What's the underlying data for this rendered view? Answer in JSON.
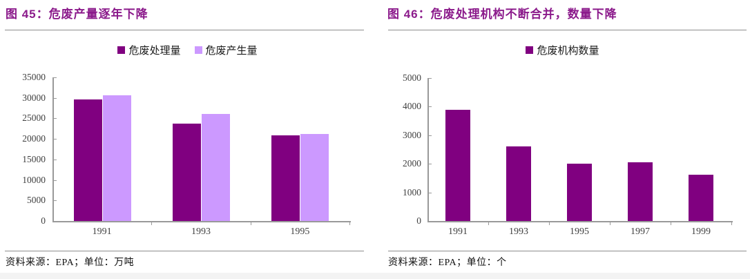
{
  "page": {
    "background": "#ffffff",
    "bottom_band_color": "#f3f3f3"
  },
  "styles": {
    "title_color": "#8B1A8B",
    "axis_color": "#999999",
    "tick_label_color": "#3F3F3F",
    "rule_color": "#8C8C8C",
    "bar_dark": "#800080",
    "bar_light": "#CC99FF"
  },
  "chart_data": [
    {
      "type": "bar",
      "figure_no": "图 45",
      "title": "图 45：危废产量逐年下降",
      "categories": [
        "1991",
        "1993",
        "1995"
      ],
      "series": [
        {
          "name": "危废处理量",
          "color": "#800080",
          "values": [
            29600,
            23700,
            20800
          ]
        },
        {
          "name": "危废产生量",
          "color": "#CC99FF",
          "values": [
            30600,
            26000,
            21200
          ]
        }
      ],
      "ylim": [
        0,
        35000
      ],
      "yticks": [
        0,
        5000,
        10000,
        15000,
        20000,
        25000,
        30000,
        35000
      ],
      "xlabel": "",
      "ylabel": "",
      "grid": false,
      "legend_position": "top-center",
      "source": "资料来源：EPA；单位：万吨"
    },
    {
      "type": "bar",
      "figure_no": "图 46",
      "title": "图 46：危废处理机构不断合并，数量下降",
      "categories": [
        "1991",
        "1993",
        "1995",
        "1997",
        "1999"
      ],
      "series": [
        {
          "name": "危废机构数量",
          "color": "#800080",
          "values": [
            3900,
            2600,
            2010,
            2050,
            1610
          ]
        }
      ],
      "ylim": [
        0,
        5000
      ],
      "yticks": [
        0,
        1000,
        2000,
        3000,
        4000,
        5000
      ],
      "xlabel": "",
      "ylabel": "",
      "grid": false,
      "legend_position": "top-center",
      "source": "资料来源：EPA；单位：个"
    }
  ]
}
